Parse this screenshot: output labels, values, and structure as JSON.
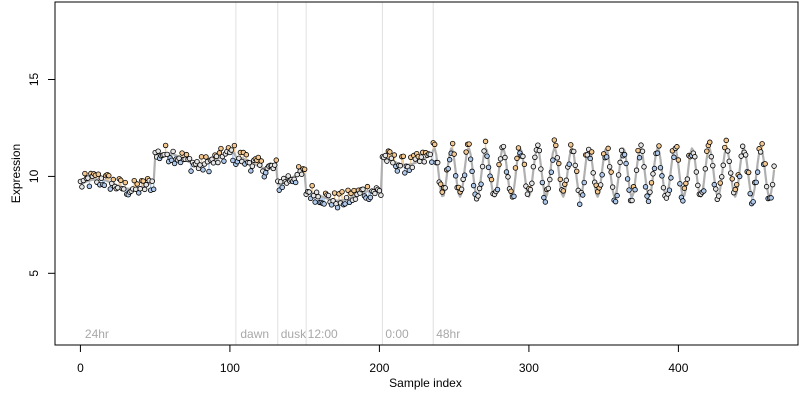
{
  "chart_data": {
    "type": "scatter",
    "xlabel": "Sample index",
    "ylabel": "Expression",
    "xlim": [
      -17,
      480
    ],
    "ylim": [
      1.3,
      19.0
    ],
    "x_ticks": [
      0,
      100,
      200,
      300,
      400
    ],
    "y_ticks": [
      5,
      10,
      15
    ],
    "grid": false,
    "vlines": [
      104,
      132,
      151,
      202,
      236
    ],
    "phase_labels": [
      {
        "text": "24hr",
        "x": 3
      },
      {
        "text": "dawn",
        "x": 107
      },
      {
        "text": "dusk",
        "x": 134
      },
      {
        "text": "12:00",
        "x": 152
      },
      {
        "text": "0:00",
        "x": 204
      },
      {
        "text": "48hr",
        "x": 238
      }
    ],
    "segments": [
      {
        "x_start": 0,
        "x_end": 50,
        "level": 9.6,
        "wobble": 0.25
      },
      {
        "x_start": 50,
        "x_end": 104,
        "level": 10.9,
        "wobble": 0.3
      },
      {
        "x_start": 104,
        "x_end": 132,
        "level": 10.7,
        "wobble": 0.3
      },
      {
        "x_start": 132,
        "x_end": 151,
        "level": 9.8,
        "wobble": 0.3
      },
      {
        "x_start": 151,
        "x_end": 202,
        "level": 9.0,
        "wobble": 0.25
      },
      {
        "x_start": 202,
        "x_end": 236,
        "level": 10.9,
        "wobble": 0.3
      }
    ],
    "oscillation": {
      "x_start": 236,
      "x_end": 464,
      "center": 10.2,
      "amplitude": 1.25,
      "period": 11.5
    },
    "colors": {
      "point_stroke": "#000000",
      "point_fill_low": "#aec9ec",
      "point_fill_high": "#f5c890",
      "point_fill_mid": "#e6e6e6",
      "fit_line": "#b0b0b0",
      "bar_low": "#aec9ec",
      "bar_high": "#f5c890",
      "vline": "#e0e0e0",
      "annotation_text": "#a8a8a8"
    }
  }
}
